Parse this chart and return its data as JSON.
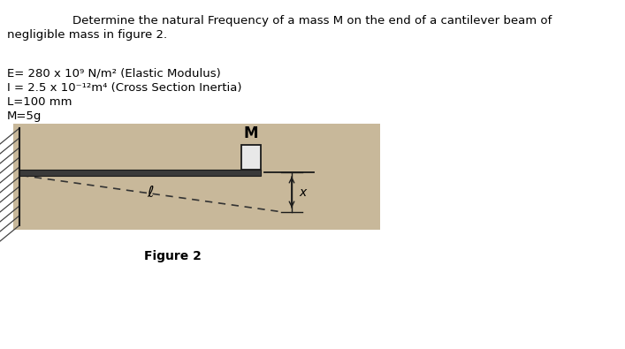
{
  "title_line1": "Determine the natural Frequency of a mass M on the end of a cantilever beam of",
  "title_line2": "negligible mass in figure 2.",
  "param_E": "E= 280 x 10⁹ N/m² (Elastic Modulus)",
  "param_I": "I = 2.5 x 10⁻¹²m⁴ (Cross Section Inertia)",
  "param_L": "L=100 mm",
  "param_M": "M=5g",
  "figure_caption": "Figure 2",
  "bg_color": "#ffffff",
  "text_color": "#000000",
  "beam_color": "#1a1a1a",
  "wall_hatch_color": "#444444",
  "dashed_color": "#333333",
  "diagram_bg": "#c8b89a",
  "title_fontsize": 9.5,
  "param_fontsize": 9.5,
  "caption_fontsize": 10
}
